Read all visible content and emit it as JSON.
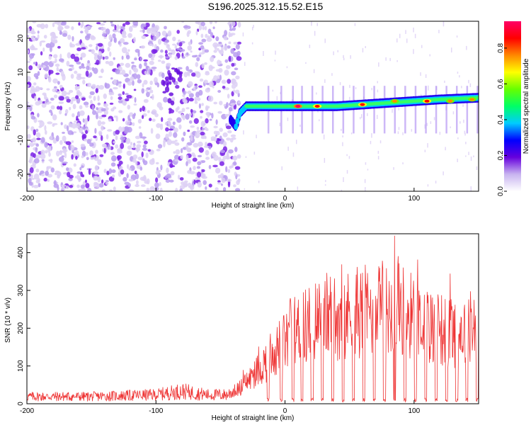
{
  "title": "S196.2025.312.15.52.E15",
  "chart_data": [
    {
      "type": "heatmap",
      "name": "spectrogram",
      "xlabel": "Height of straight line (km)",
      "ylabel": "Frequency (Hz)",
      "xlim": [
        -200,
        150
      ],
      "ylim": [
        -25,
        25
      ],
      "xticks": [
        -200,
        -100,
        0,
        100
      ],
      "yticks": [
        -20,
        -10,
        0,
        10,
        20
      ],
      "colorbar": {
        "label": "Normalized spectral amplitude",
        "range": [
          0.0,
          0.95
        ],
        "ticks": [
          0.0,
          0.2,
          0.4,
          0.6,
          0.8
        ],
        "tick_labels": [
          "0.0",
          "0.2",
          "0.4",
          "0.6",
          "0.8"
        ],
        "colormap": [
          "#ffffff",
          "#c8b4f0",
          "#6600dd",
          "#0000ff",
          "#00ccff",
          "#00ff66",
          "#66ff00",
          "#ffff00",
          "#ff8800",
          "#ff0000",
          "#ff0066"
        ]
      },
      "trace": [
        {
          "x": -42,
          "y": -4
        },
        {
          "x": -38,
          "y": -6
        },
        {
          "x": -35,
          "y": -2
        },
        {
          "x": -30,
          "y": 0
        },
        {
          "x": -20,
          "y": 0
        },
        {
          "x": 0,
          "y": 0
        },
        {
          "x": 20,
          "y": 0
        },
        {
          "x": 40,
          "y": 0
        },
        {
          "x": 60,
          "y": 0.5
        },
        {
          "x": 80,
          "y": 1.0
        },
        {
          "x": 100,
          "y": 1.5
        },
        {
          "x": 120,
          "y": 2.0
        },
        {
          "x": 150,
          "y": 2.5
        }
      ],
      "peaks": [
        {
          "x": 10,
          "y": 0,
          "amp": 0.95
        },
        {
          "x": 25,
          "y": 0,
          "amp": 0.85
        },
        {
          "x": 60,
          "y": 0.5,
          "amp": 0.9
        },
        {
          "x": 85,
          "y": 1.5,
          "amp": 0.8
        },
        {
          "x": 110,
          "y": 1.5,
          "amp": 0.85
        },
        {
          "x": 128,
          "y": 1.5,
          "amp": 0.8
        },
        {
          "x": 145,
          "y": 2,
          "amp": 0.8
        }
      ],
      "noise_region": {
        "xmin": -200,
        "xmax": -35,
        "amp": 0.35
      }
    },
    {
      "type": "line",
      "name": "snr",
      "xlabel": "Height of straight line (km)",
      "ylabel": "SNR (10 * v/v)",
      "xlim": [
        -200,
        150
      ],
      "ylim": [
        0,
        450
      ],
      "xticks": [
        -200,
        -100,
        0,
        100
      ],
      "yticks": [
        0,
        100,
        200,
        300,
        400
      ],
      "color": "#ee3333",
      "envelope": {
        "x": [
          -200,
          -150,
          -100,
          -80,
          -60,
          -45,
          -35,
          -25,
          -15,
          -5,
          5,
          15,
          25,
          35,
          45,
          55,
          65,
          75,
          85,
          95,
          105,
          115,
          125,
          135,
          145,
          150
        ],
        "y": [
          20,
          20,
          25,
          35,
          25,
          25,
          45,
          80,
          120,
          160,
          200,
          220,
          240,
          255,
          250,
          260,
          265,
          260,
          275,
          260,
          230,
          215,
          210,
          205,
          215,
          220
        ]
      },
      "dips": [
        -13,
        -3,
        6,
        13,
        21,
        29,
        37,
        45,
        53,
        61,
        69,
        77,
        85,
        93,
        101,
        109,
        117,
        125,
        133,
        141,
        149
      ],
      "max_peak": {
        "x": 85,
        "y": 445
      }
    }
  ]
}
